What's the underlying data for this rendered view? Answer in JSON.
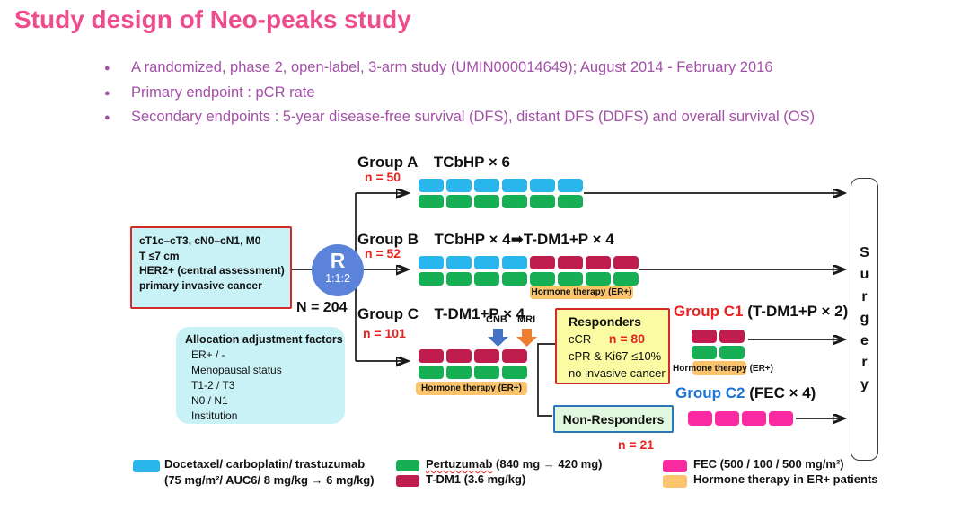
{
  "title": "Study design of Neo-peaks study",
  "bullets": [
    "A randomized, phase 2, open-label, 3-arm study (UMIN000014649); August 2014 - February 2016",
    "Primary endpoint : pCR rate",
    "Secondary endpoints : 5-year disease-free survival (DFS), distant DFS (DDFS) and overall survival (OS)"
  ],
  "eligibility": {
    "lines": [
      "cT1c–cT3, cN0–cN1, M0",
      "T ≤7 cm",
      "HER2+ (central assessment)",
      "primary invasive cancer"
    ]
  },
  "randomization": {
    "r": "R",
    "ratio": "1:1:2",
    "n_total": "N = 204"
  },
  "allocation": {
    "title": "Allocation adjustment factors",
    "items": [
      "ER+ / -",
      "Menopausal status",
      "T1-2 / T3",
      "N0 / N1",
      "Institution"
    ]
  },
  "groups": {
    "a": {
      "name": "Group A",
      "regimen": "TCbHP × 6",
      "n": "n = 50"
    },
    "b": {
      "name": "Group B",
      "regimen": "TCbHP × 4➡T-DM1+P × 4",
      "n": "n = 52",
      "hormone": "Hormone therapy (ER+)"
    },
    "c": {
      "name": "Group C",
      "regimen": "T-DM1+P × 4",
      "n": "n = 101",
      "cnb": "CNB",
      "mri": "MRI",
      "hormone": "Hormone therapy (ER+)"
    },
    "c1": {
      "name": "Group C1",
      "regimen": "(T-DM1+P × 2)",
      "hormone": "Hormone therapy (ER+)"
    },
    "c2": {
      "name": "Group C2",
      "regimen": "(FEC × 4)"
    }
  },
  "responders": {
    "title": "Responders",
    "line1": "cCR",
    "n": "n = 80",
    "line2": "cPR & Ki67 ≤10%",
    "line3": "no invasive cancer"
  },
  "non_responders": {
    "title": "Non-Responders",
    "n": "n = 21"
  },
  "surgery": {
    "label": "Surgery",
    "letters": [
      "S",
      "u",
      "r",
      "g",
      "e",
      "r",
      "y"
    ]
  },
  "legend": {
    "docetaxel": {
      "line1": "Docetaxel/ carboplatin/ trastuzumab",
      "line2": "(75 mg/m²/ AUC6/ 8 mg/kg → 6 mg/kg)"
    },
    "pertuzumab": {
      "word": "Pertuzumab",
      "rest": " (840 mg → 420 mg)"
    },
    "tdm1": {
      "label": "T-DM1 (3.6 mg/kg)"
    },
    "fec": {
      "label": "FEC (500 / 100 / 500 mg/m²)"
    },
    "hormone": {
      "label": "Hormone therapy in ER+ patients"
    }
  },
  "colors": {
    "title-pink": "#EE4C8C",
    "bullet-purple": "#A351A8",
    "accent-red": "#E8231F",
    "group-c2-blue": "#1B74D8",
    "chemo-blue": "#29B6ED",
    "chemo-green": "#17AF54",
    "chemo-crimson": "#C01D4F",
    "chemo-pink": "#FB2AA2",
    "hormone-orange": "#FBC46A",
    "cyan-box": "#C9F2F7",
    "red-border": "#D42A2A",
    "r-circle-blue": "#5B83D9",
    "responders-yellow": "#FBFBA3",
    "nonresp-green": "#DFF8DF",
    "nonresp-border": "#2E75B6",
    "cnb-arrow-blue": "#4472C4",
    "mri-arrow-orange": "#ED7D31"
  },
  "grids": {
    "group_a": [
      [
        "chemo-blue",
        "chemo-green"
      ],
      [
        "chemo-blue",
        "chemo-green"
      ],
      [
        "chemo-blue",
        "chemo-green"
      ],
      [
        "chemo-blue",
        "chemo-green"
      ],
      [
        "chemo-blue",
        "chemo-green"
      ],
      [
        "chemo-blue",
        "chemo-green"
      ]
    ],
    "group_b": [
      [
        "chemo-blue",
        "chemo-green"
      ],
      [
        "chemo-blue",
        "chemo-green"
      ],
      [
        "chemo-blue",
        "chemo-green"
      ],
      [
        "chemo-blue",
        "chemo-green"
      ],
      [
        "chemo-crimson",
        "chemo-green"
      ],
      [
        "chemo-crimson",
        "chemo-green"
      ],
      [
        "chemo-crimson",
        "chemo-green"
      ],
      [
        "chemo-crimson",
        "chemo-green"
      ]
    ],
    "group_c": [
      [
        "chemo-crimson",
        "chemo-green"
      ],
      [
        "chemo-crimson",
        "chemo-green"
      ],
      [
        "chemo-crimson",
        "chemo-green"
      ],
      [
        "chemo-crimson",
        "chemo-green"
      ]
    ],
    "group_c1": [
      [
        "chemo-crimson",
        "chemo-green"
      ],
      [
        "chemo-crimson",
        "chemo-green"
      ]
    ],
    "group_c2": [
      [
        "chemo-pink"
      ],
      [
        "chemo-pink"
      ],
      [
        "chemo-pink"
      ],
      [
        "chemo-pink"
      ]
    ]
  }
}
